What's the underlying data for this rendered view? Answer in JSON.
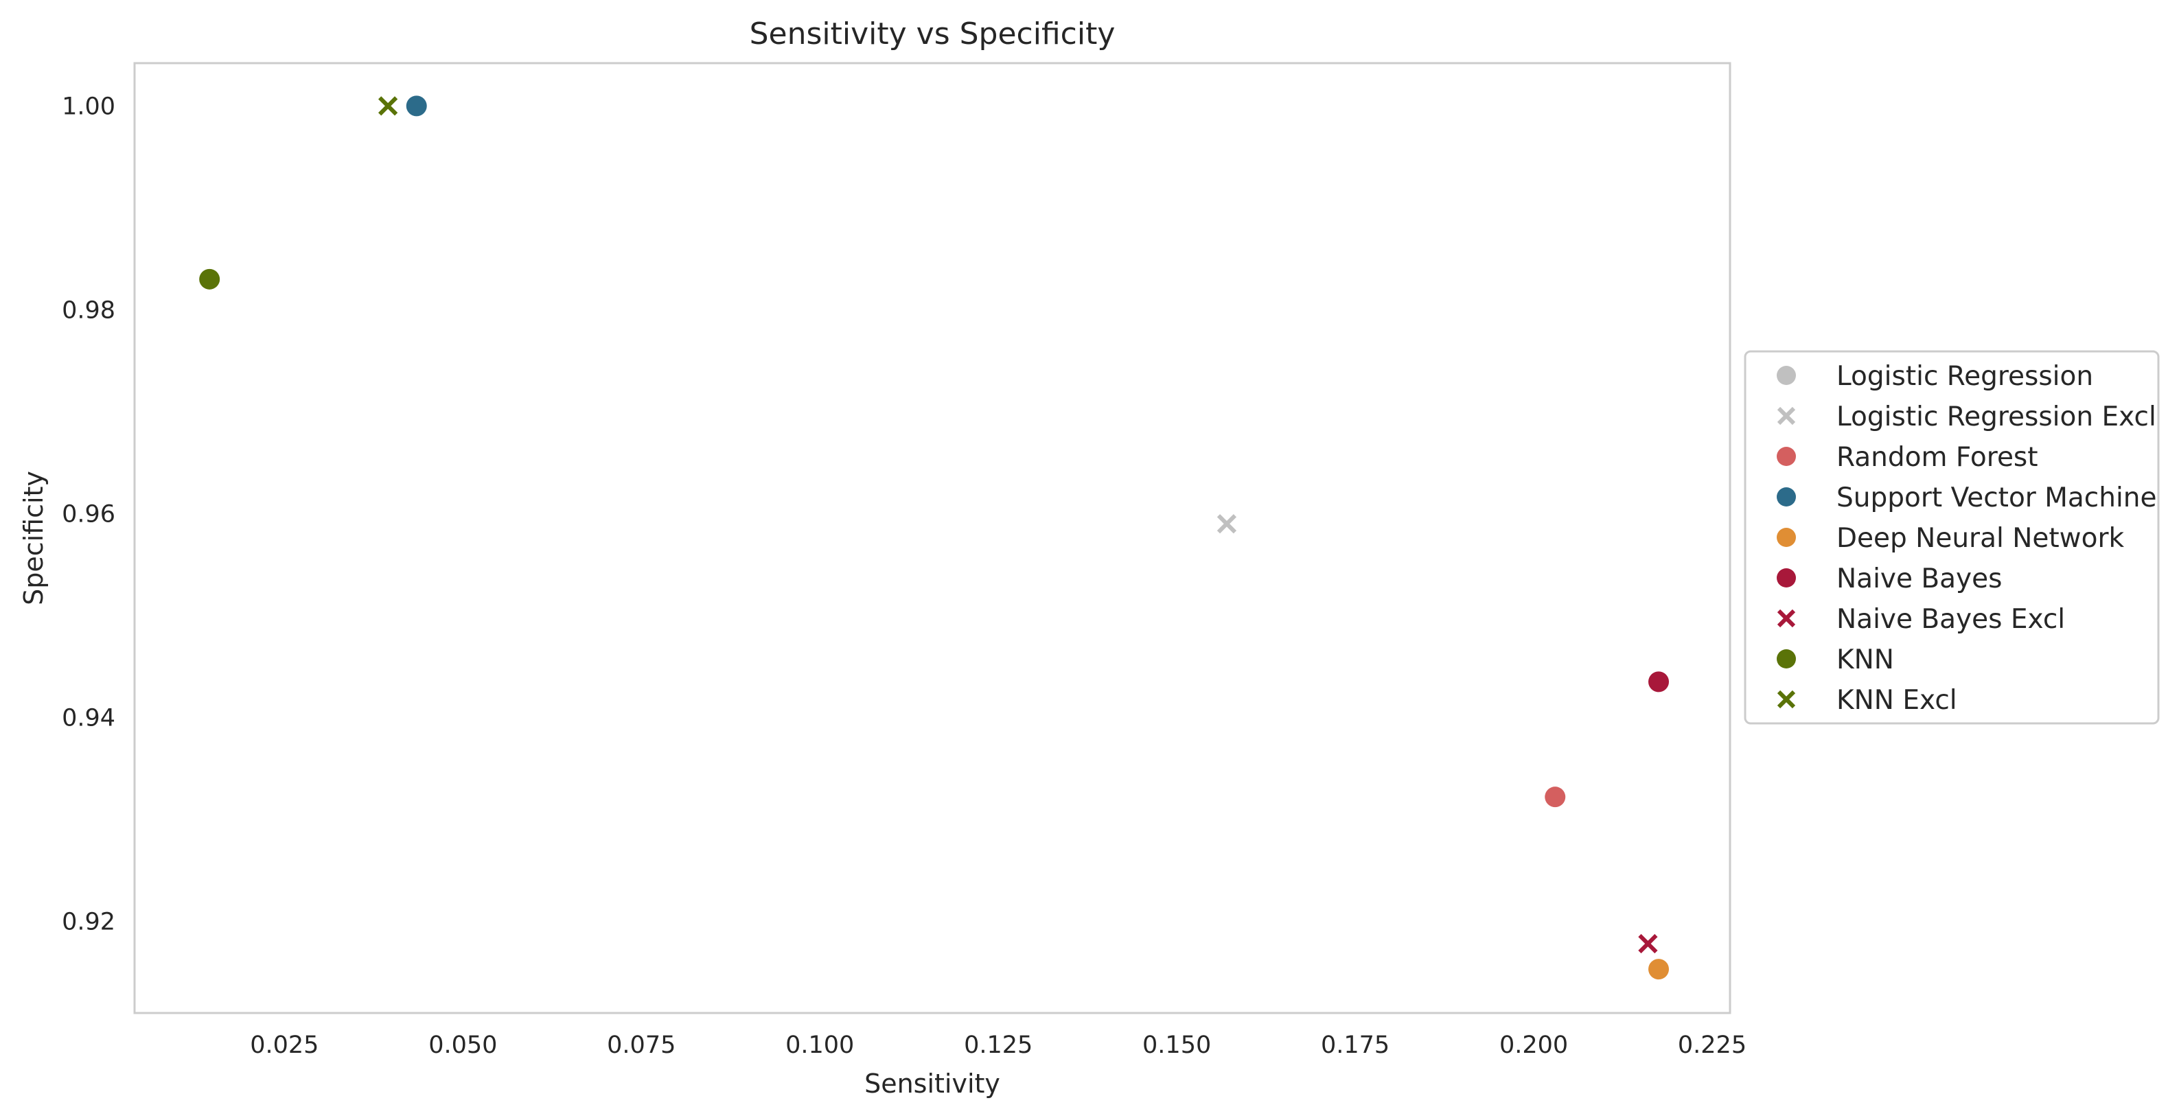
{
  "chart_data": {
    "type": "scatter",
    "title": "Sensitivity vs Specificity",
    "xlabel": "Sensitivity",
    "ylabel": "Specificity",
    "xlim": [
      0.004,
      0.2275
    ],
    "ylim": [
      0.911,
      1.0042
    ],
    "xticks": [
      0.025,
      0.05,
      0.075,
      0.1,
      0.125,
      0.15,
      0.175,
      0.2,
      0.225
    ],
    "xtick_labels": [
      "0.025",
      "0.050",
      "0.075",
      "0.100",
      "0.125",
      "0.150",
      "0.175",
      "0.200",
      "0.225"
    ],
    "yticks": [
      0.92,
      0.94,
      0.96,
      0.98,
      1.0
    ],
    "ytick_labels": [
      "0.92",
      "0.94",
      "0.96",
      "0.98",
      "1.00"
    ],
    "grid": false,
    "legend_position": "center-right-outside",
    "series": [
      {
        "name": "Logistic Regression",
        "marker": "circle",
        "color": "#c0c0c0",
        "points": []
      },
      {
        "name": "Logistic Regression Excl",
        "marker": "x",
        "color": "#c0c0c0",
        "points": [
          [
            0.157,
            0.959
          ]
        ]
      },
      {
        "name": "Random Forest",
        "marker": "circle",
        "color": "#d45f5f",
        "points": [
          [
            0.203,
            0.9322
          ]
        ]
      },
      {
        "name": "Support Vector Machine",
        "marker": "circle",
        "color": "#2c6b8a",
        "points": [
          [
            0.0435,
            1.0
          ]
        ]
      },
      {
        "name": "Deep Neural Network",
        "marker": "circle",
        "color": "#e08e34",
        "points": [
          [
            0.2175,
            0.9153
          ]
        ]
      },
      {
        "name": "Naive Bayes",
        "marker": "circle",
        "color": "#a8183a",
        "points": [
          [
            0.2175,
            0.9435
          ]
        ]
      },
      {
        "name": "Naive Bayes Excl",
        "marker": "x",
        "color": "#a8183a",
        "points": [
          [
            0.216,
            0.9178
          ]
        ]
      },
      {
        "name": "KNN",
        "marker": "circle",
        "color": "#5a7308",
        "points": [
          [
            0.0145,
            0.983
          ]
        ]
      },
      {
        "name": "KNN Excl",
        "marker": "x",
        "color": "#5a7308",
        "points": [
          [
            0.0395,
            1.0
          ]
        ]
      }
    ]
  }
}
